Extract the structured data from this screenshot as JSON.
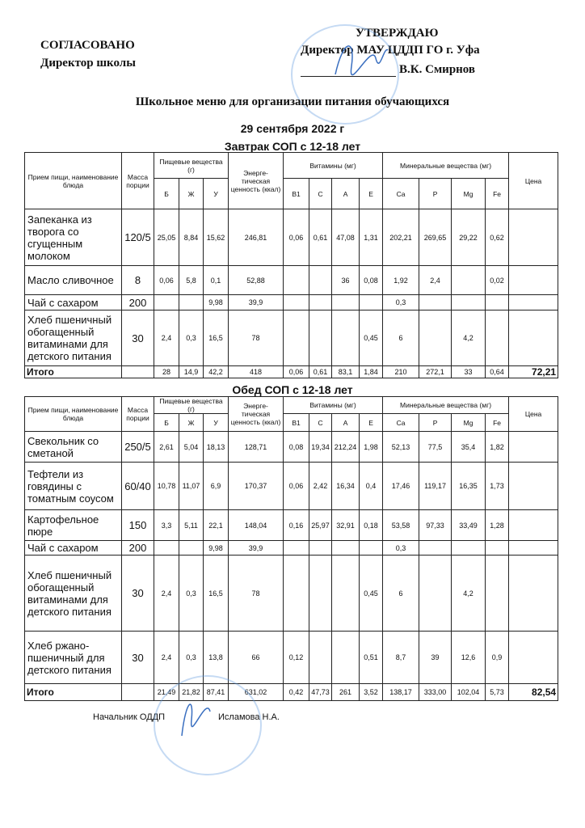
{
  "header": {
    "left_line1": "СОГЛАСОВАНО",
    "left_line2": "Директор школы",
    "right_line1": "УТВЕРЖДАЮ",
    "right_line2": "Директор МАУ ЦДДП ГО г. Уфа",
    "right_line3": "В.К. Смирнов"
  },
  "title": "Школьное меню для организации питания обучающихся",
  "date": "29 сентября 2022 г",
  "columns": {
    "name": "Прием пищи, наименование блюда",
    "mass": "Масса порции",
    "nutrients": "Пищевые вещества (г)",
    "energy": "Энерге-тическая ценность (ккал)",
    "vitamins": "Витамины (мг)",
    "minerals": "Минеральные вещества (мг)",
    "price": "Цена",
    "sub": [
      "Б",
      "Ж",
      "У",
      "В1",
      "С",
      "А",
      "Е",
      "Ca",
      "P",
      "Mg",
      "Fe"
    ]
  },
  "breakfast": {
    "title": "Завтрак СОП с 12-18 лет",
    "rows": [
      {
        "name": "Запеканка из творога со сгущенным молоком",
        "mass": "120/5",
        "b": "25,05",
        "zh": "8,84",
        "u": "15,62",
        "energy": "246,81",
        "b1": "0,06",
        "c": "0,61",
        "a": "47,08",
        "e": "1,31",
        "ca": "202,21",
        "p": "269,65",
        "mg": "29,22",
        "fe": "0,62",
        "price": ""
      },
      {
        "name": "Масло сливочное",
        "mass": "8",
        "b": "0,06",
        "zh": "5,8",
        "u": "0,1",
        "energy": "52,88",
        "b1": "",
        "c": "",
        "a": "36",
        "e": "0,08",
        "ca": "1,92",
        "p": "2,4",
        "mg": "",
        "fe": "0,02",
        "price": ""
      },
      {
        "name": "Чай с сахаром",
        "mass": "200",
        "b": "",
        "zh": "",
        "u": "9,98",
        "energy": "39,9",
        "b1": "",
        "c": "",
        "a": "",
        "e": "",
        "ca": "0,3",
        "p": "",
        "mg": "",
        "fe": "",
        "price": ""
      },
      {
        "name": "Хлеб пшеничный обогащенный витаминами для детского питания",
        "mass": "30",
        "b": "2,4",
        "zh": "0,3",
        "u": "16,5",
        "energy": "78",
        "b1": "",
        "c": "",
        "a": "",
        "e": "0,45",
        "ca": "6",
        "p": "",
        "mg": "4,2",
        "fe": "",
        "price": ""
      }
    ],
    "total": {
      "name": "Итого",
      "mass": "",
      "b": "28",
      "zh": "14,9",
      "u": "42,2",
      "energy": "418",
      "b1": "0,06",
      "c": "0,61",
      "a": "83,1",
      "e": "1,84",
      "ca": "210",
      "p": "272,1",
      "mg": "33",
      "fe": "0,64",
      "price": "72,21"
    }
  },
  "lunch": {
    "title": "Обед СОП с 12-18 лет",
    "rows": [
      {
        "name": "Свекольник со сметаной",
        "mass": "250/5",
        "b": "2,61",
        "zh": "5,04",
        "u": "18,13",
        "energy": "128,71",
        "b1": "0,08",
        "c": "19,34",
        "a": "212,24",
        "e": "1,98",
        "ca": "52,13",
        "p": "77,5",
        "mg": "35,4",
        "fe": "1,82",
        "price": ""
      },
      {
        "name": "Тефтели из говядины с томатным соусом",
        "mass": "60/40",
        "b": "10,78",
        "zh": "11,07",
        "u": "6,9",
        "energy": "170,37",
        "b1": "0,06",
        "c": "2,42",
        "a": "16,34",
        "e": "0,4",
        "ca": "17,46",
        "p": "119,17",
        "mg": "16,35",
        "fe": "1,73",
        "price": ""
      },
      {
        "name": "Картофельное пюре",
        "mass": "150",
        "b": "3,3",
        "zh": "5,11",
        "u": "22,1",
        "energy": "148,04",
        "b1": "0,16",
        "c": "25,97",
        "a": "32,91",
        "e": "0,18",
        "ca": "53,58",
        "p": "97,33",
        "mg": "33,49",
        "fe": "1,28",
        "price": ""
      },
      {
        "name": "Чай с сахаром",
        "mass": "200",
        "b": "",
        "zh": "",
        "u": "9,98",
        "energy": "39,9",
        "b1": "",
        "c": "",
        "a": "",
        "e": "",
        "ca": "0,3",
        "p": "",
        "mg": "",
        "fe": "",
        "price": ""
      },
      {
        "name": "Хлеб пшеничный обогащенный витаминами для детского питания",
        "mass": "30",
        "b": "2,4",
        "zh": "0,3",
        "u": "16,5",
        "energy": "78",
        "b1": "",
        "c": "",
        "a": "",
        "e": "0,45",
        "ca": "6",
        "p": "",
        "mg": "4,2",
        "fe": "",
        "price": ""
      },
      {
        "name": "Хлеб ржано-пшеничный для детского питания",
        "mass": "30",
        "b": "2,4",
        "zh": "0,3",
        "u": "13,8",
        "energy": "66",
        "b1": "0,12",
        "c": "",
        "a": "",
        "e": "0,51",
        "ca": "8,7",
        "p": "39",
        "mg": "12,6",
        "fe": "0,9",
        "price": ""
      }
    ],
    "total": {
      "name": "Итого",
      "mass": "",
      "b": "21,49",
      "zh": "21,82",
      "u": "87,41",
      "energy": "631,02",
      "b1": "0,42",
      "c": "47,73",
      "a": "261",
      "e": "3,52",
      "ca": "138,17",
      "p": "333,00",
      "mg": "102,04",
      "fe": "5,73",
      "price": "82,54"
    }
  },
  "footer": {
    "role": "Начальник ОДДП",
    "name": "Исламова Н.А."
  },
  "colors": {
    "ink": "#111111",
    "stamp": "#5a96dc"
  }
}
